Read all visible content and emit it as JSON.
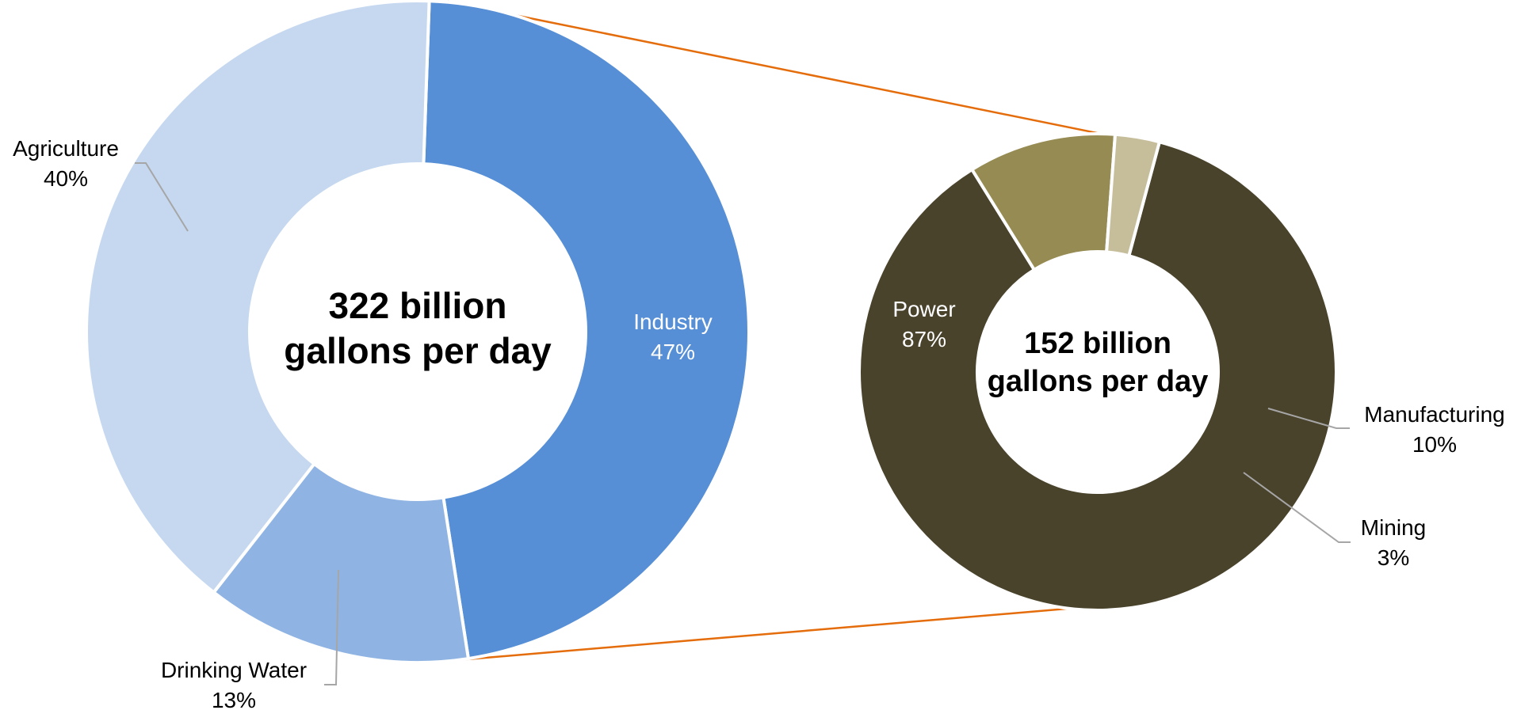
{
  "chart_data": [
    {
      "type": "donut",
      "center_text": [
        "322 billion",
        "gallons per day"
      ],
      "slices": [
        {
          "label": "Industry",
          "value": 47,
          "value_label": "47%",
          "color": "#568fd6"
        },
        {
          "label": "Drinking Water",
          "value": 13,
          "value_label": "13%",
          "color": "#8fb4e3"
        },
        {
          "label": "Agriculture",
          "value": 40,
          "value_label": "40%",
          "color": "#c5d8f0"
        }
      ]
    },
    {
      "type": "donut",
      "center_text": [
        "152 billion",
        "gallons per day"
      ],
      "breakdown_of": "Industry",
      "slices": [
        {
          "label": "Power",
          "value": 87,
          "value_label": "87%",
          "color": "#4a432c"
        },
        {
          "label": "Manufacturing",
          "value": 10,
          "value_label": "10%",
          "color": "#968b52"
        },
        {
          "label": "Mining",
          "value": 3,
          "value_label": "3%",
          "color": "#c6be9b"
        }
      ]
    }
  ],
  "connector_color": "#e46c0a",
  "leader_color": "#a6a6a6"
}
